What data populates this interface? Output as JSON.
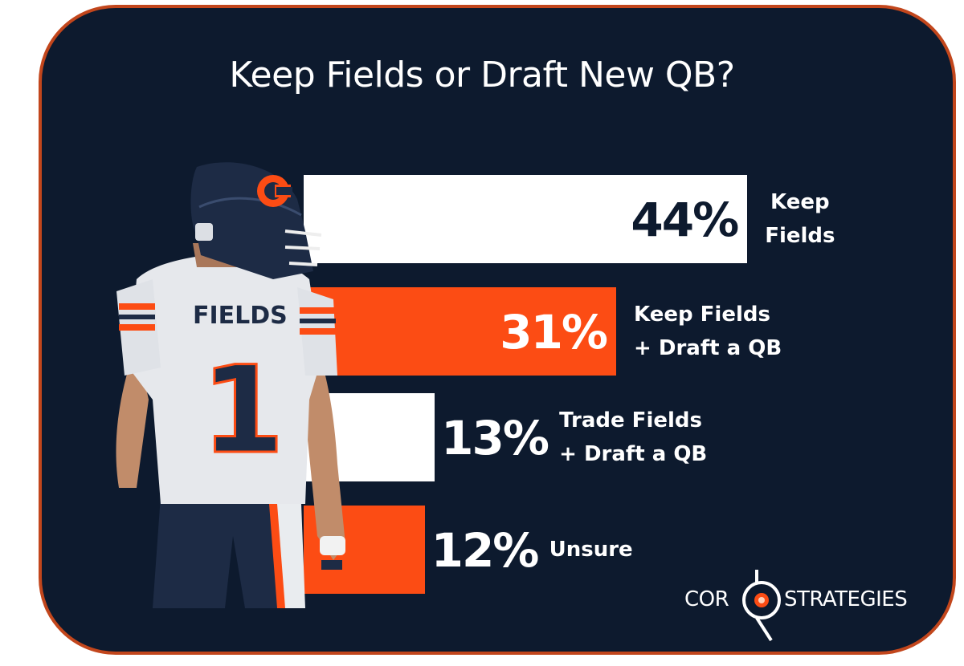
{
  "colors": {
    "background": "#0d1a2e",
    "border": "#c2461c",
    "white_bar": "#ffffff",
    "orange_bar": "#fc4c14",
    "navy_text": "#0d1a2e"
  },
  "chart_data": {
    "type": "bar",
    "orientation": "horizontal",
    "title": "Keep Fields or Draft New QB?",
    "categories": [
      "Keep Fields",
      "Keep Fields + Draft a QB",
      "Trade Fields + Draft a QB",
      "Unsure"
    ],
    "values": [
      44,
      31,
      13,
      12
    ],
    "value_labels": [
      "44%",
      "31%",
      "13%",
      "12%"
    ],
    "bar_colors": [
      "#ffffff",
      "#fc4c14",
      "#ffffff",
      "#fc4c14"
    ],
    "legend": "none",
    "grid": false
  },
  "labels": [
    "Keep\nFields",
    "Keep Fields\n+ Draft a QB",
    "Trade Fields\n+ Draft a QB",
    "Unsure"
  ],
  "photo": {
    "jersey_name": "FIELDS",
    "jersey_number": "1"
  },
  "logo": {
    "left_text": "COR",
    "right_text": "STRATEGIES"
  }
}
